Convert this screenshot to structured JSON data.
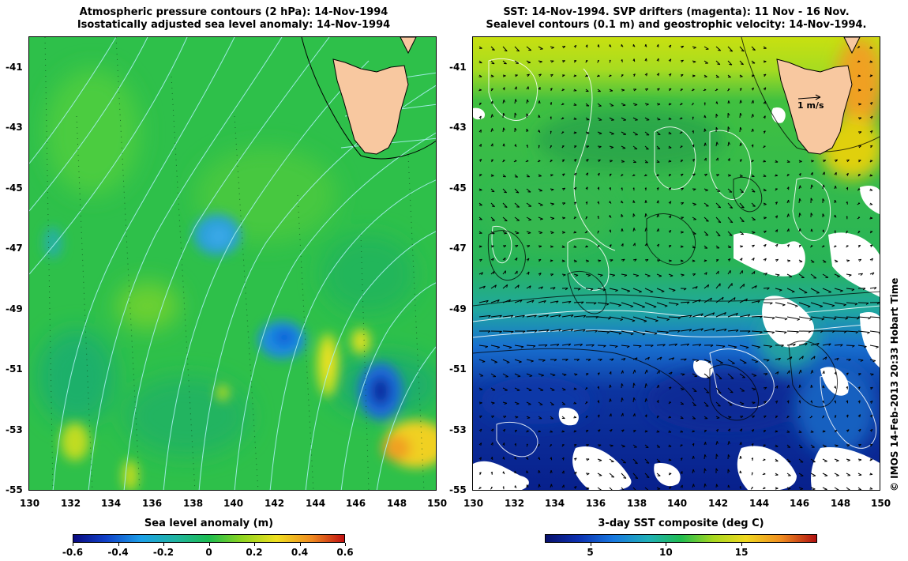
{
  "left_panel": {
    "title_line1": "Atmospheric pressure contours (2 hPa): 14-Nov-1994",
    "title_line2": "Isostatically adjusted sea level anomaly: 14-Nov-1994",
    "colorbar_title": "Sea level anomaly (m)",
    "colorbar_ticks": [
      "-0.6",
      "-0.4",
      "-0.2",
      "0",
      "0.2",
      "0.4",
      "0.6"
    ],
    "colorbar_values": [
      -0.6,
      -0.4,
      -0.2,
      0,
      0.2,
      0.4,
      0.6
    ],
    "colorbar_range": [
      -0.6,
      0.6
    ]
  },
  "right_panel": {
    "title_line1": "SST: 14-Nov-1994. SVP drifters (magenta): 11 Nov - 16 Nov.",
    "title_line2": "Sealevel contours (0.1 m) and geostrophic velocity: 14-Nov-1994.",
    "colorbar_title": "3-day SST composite (deg C)",
    "colorbar_ticks": [
      "5",
      "10",
      "15"
    ],
    "colorbar_values": [
      5,
      10,
      15
    ],
    "colorbar_range": [
      2,
      20
    ],
    "scale_arrow_label": "1 m/s"
  },
  "axes": {
    "lon_ticks": [
      "130",
      "132",
      "134",
      "136",
      "138",
      "140",
      "142",
      "144",
      "146",
      "148",
      "150"
    ],
    "lat_ticks": [
      "-41",
      "-43",
      "-45",
      "-47",
      "-49",
      "-51",
      "-53",
      "-55"
    ],
    "lon_range": [
      130,
      150
    ],
    "lat_range": [
      -55,
      -40
    ]
  },
  "copyright": "© IMOS 14-Feb-2013 20:33 Hobart Time",
  "colors": {
    "land": "#f8c8a0",
    "pressure_contour": "#a8f0f0",
    "sealevel_contour": "#ffffff",
    "arrows": "#000000"
  }
}
